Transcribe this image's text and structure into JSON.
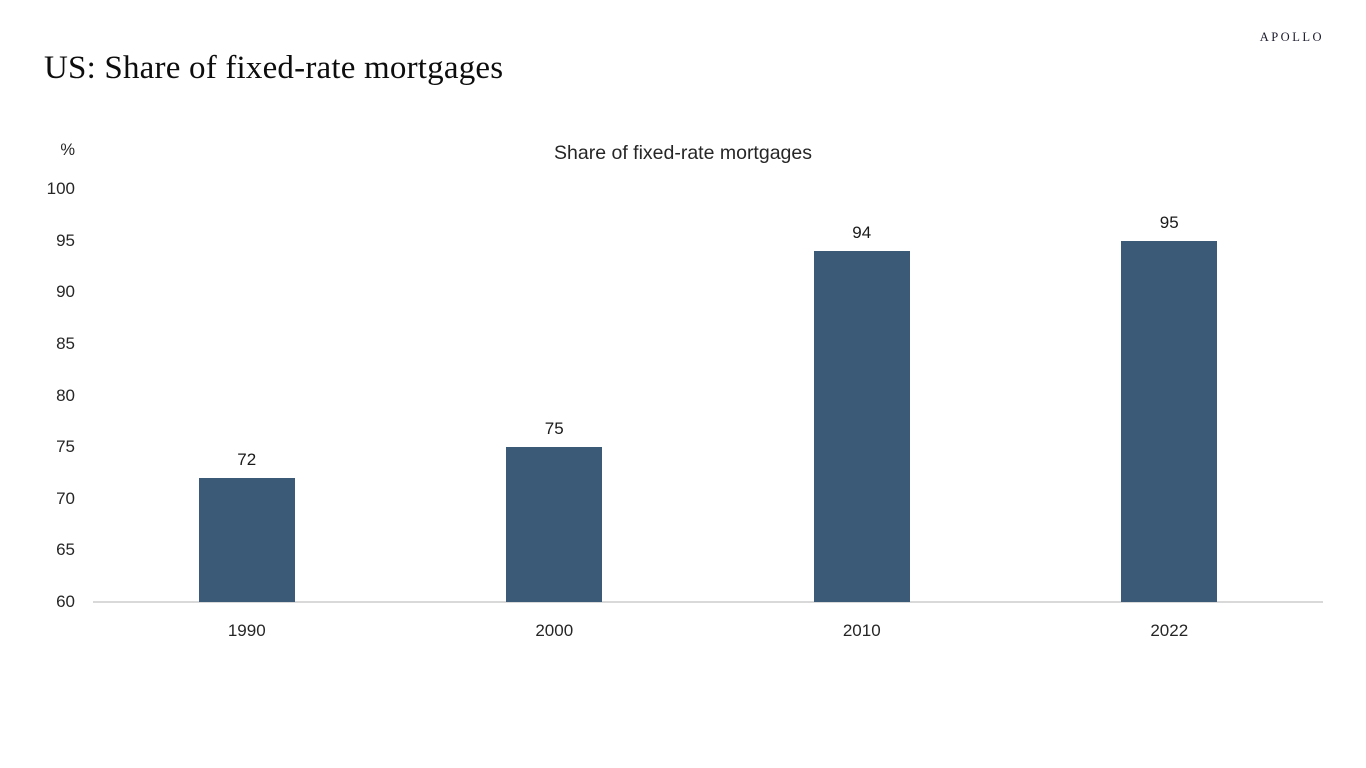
{
  "header": {
    "page_title": "US: Share of fixed-rate mortgages",
    "brand": "APOLLO"
  },
  "chart_data": {
    "type": "bar",
    "title": "Share of fixed-rate mortgages",
    "unit_label": "%",
    "categories": [
      "1990",
      "2000",
      "2010",
      "2022"
    ],
    "values": [
      72,
      75,
      94,
      95
    ],
    "xlabel": "",
    "ylabel": "%",
    "ylim": [
      60,
      100
    ],
    "ytick_step": 5,
    "yticks": [
      100,
      95,
      90,
      85,
      80,
      75,
      70,
      65,
      60
    ],
    "grid": false,
    "legend": "none",
    "bar_color": "#3A5A78",
    "axis_line_color": "#D9D9D9",
    "text_color": "#262626"
  }
}
